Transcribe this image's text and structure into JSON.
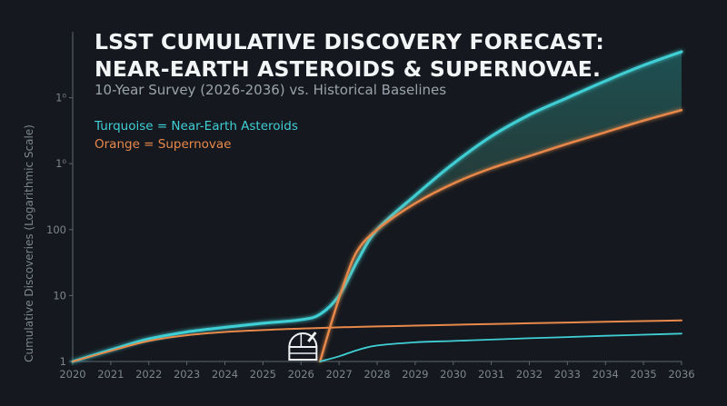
{
  "chart_data": {
    "type": "line",
    "title_lines": [
      "LSST CUMULATIVE DISCOVERY FORECAST:",
      "NEAR-EARTH ASTEROIDS & SUPERNOVAE."
    ],
    "subtitle": "10-Year Survey (2026-2036) vs. Historical Baselines",
    "legend": [
      "Turquoise = Near-Earth Asteroids",
      "Orange = Supernovae"
    ],
    "ylabel": "Cumulative Discoveries (Logarithmic Scale)",
    "xlabel": "",
    "y_scale": "log",
    "x_ticks": [
      "2020",
      "2021",
      "2022",
      "2023",
      "2024",
      "2025",
      "2026",
      "2027",
      "2028",
      "2029",
      "2030",
      "2031",
      "2032",
      "2033",
      "2034",
      "2035",
      "2036"
    ],
    "y_ticks": [
      "1",
      "10",
      "100",
      "1⁰",
      "1⁰"
    ],
    "xlim": [
      2020,
      2036
    ],
    "ylim": [
      1,
      100000
    ],
    "grid": false,
    "colors": {
      "neo": "#3fcfd4",
      "sn": "#e8884a",
      "text": "#7c858d",
      "axis": "#5d666e"
    },
    "icon": "observatory-dome-icon",
    "series": [
      {
        "id": "neo-lsst",
        "x": [
          2020,
          2021,
          2022,
          2023,
          2024,
          2025,
          2026,
          2026.5,
          2027,
          2027.5,
          2028,
          2029,
          2030,
          2031,
          2032,
          2033,
          2034,
          2035,
          2036
        ],
        "y": [
          1,
          1.5,
          2.2,
          2.8,
          3.3,
          3.8,
          4.3,
          5.2,
          10,
          35,
          100,
          330,
          1000,
          2600,
          5500,
          10000,
          18000,
          31000,
          50000
        ]
      },
      {
        "id": "sn-lsst",
        "x": [
          2026.5,
          2026.7,
          2026.9,
          2027.2,
          2027.5,
          2028,
          2029,
          2030,
          2031,
          2032,
          2033,
          2034,
          2035,
          2036
        ],
        "y": [
          1,
          2.5,
          6,
          20,
          50,
          100,
          250,
          500,
          850,
          1300,
          2000,
          3000,
          4500,
          6500
        ]
      },
      {
        "id": "sn-baseline",
        "x": [
          2020,
          2021,
          2022,
          2023,
          2024,
          2025,
          2026,
          2027,
          2028,
          2029,
          2030,
          2031,
          2032,
          2033,
          2034,
          2035,
          2036
        ],
        "y": [
          1,
          1.45,
          2.05,
          2.5,
          2.8,
          3,
          3.15,
          3.3,
          3.4,
          3.5,
          3.6,
          3.7,
          3.8,
          3.9,
          4,
          4.1,
          4.2
        ]
      },
      {
        "id": "neo-baseline",
        "x": [
          2026.5,
          2027,
          2027.5,
          2028,
          2029,
          2030,
          2031,
          2032,
          2033,
          2034,
          2035,
          2036
        ],
        "y": [
          1,
          1.2,
          1.5,
          1.75,
          1.95,
          2.05,
          2.15,
          2.25,
          2.35,
          2.45,
          2.55,
          2.65
        ]
      }
    ]
  }
}
